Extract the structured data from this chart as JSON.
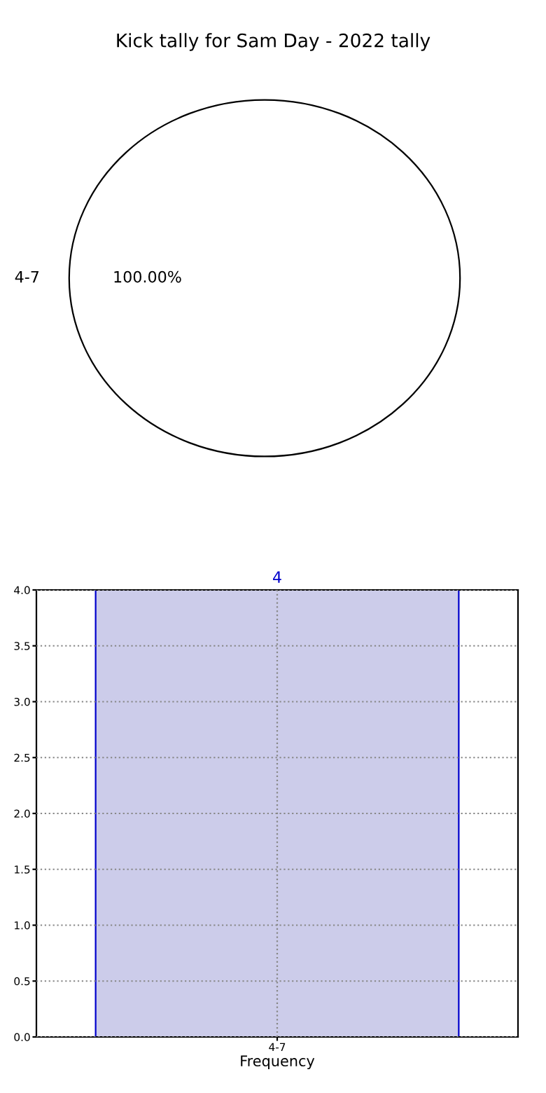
{
  "chart_data": [
    {
      "type": "pie",
      "title": "Kick tally for Sam Day - 2022 tally",
      "categories": [
        "4-7"
      ],
      "values": [
        100
      ],
      "colors": [
        "#ffffff"
      ],
      "value_labels": [
        "100.00%"
      ]
    },
    {
      "type": "bar",
      "categories": [
        "4-7"
      ],
      "values": [
        4
      ],
      "color": "#ccccea",
      "xlabel": "Frequency",
      "ylim": [
        0,
        4
      ],
      "yticks": [
        {
          "value": 0,
          "label": "0.0"
        },
        {
          "value": 0.5,
          "label": "0.5"
        },
        {
          "value": 1,
          "label": "1.0"
        },
        {
          "value": 1.5,
          "label": "1.5"
        },
        {
          "value": 2,
          "label": "2.0"
        },
        {
          "value": 2.5,
          "label": "2.5"
        },
        {
          "value": 3,
          "label": "3.0"
        },
        {
          "value": 3.5,
          "label": "3.5"
        },
        {
          "value": 4,
          "label": "4.0"
        }
      ],
      "grid": true,
      "data_labels": true
    }
  ]
}
